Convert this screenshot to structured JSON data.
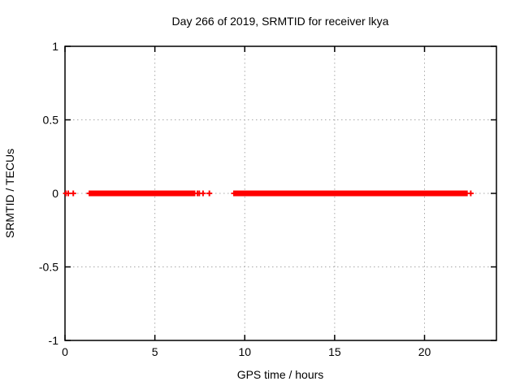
{
  "chart_data": {
    "type": "scatter",
    "title": "Day 266 of 2019, SRMTID for receiver lkya",
    "xlabel": "GPS time / hours",
    "ylabel": "SRMTID / TECUs",
    "xlim": [
      0,
      24
    ],
    "ylim": [
      -1,
      1
    ],
    "xticks": [
      0,
      5,
      10,
      15,
      20
    ],
    "xtick_labels": [
      "0",
      "5",
      "10",
      "15",
      "20"
    ],
    "yticks": [
      -1,
      -0.5,
      0,
      0.5,
      1
    ],
    "ytick_labels": [
      "-1",
      "-0.5",
      "0",
      "0.5",
      "1"
    ],
    "grid": "dashed",
    "legend": "none",
    "series": [
      {
        "name": "SRMTID",
        "color": "#ff0000",
        "marker": "plus",
        "y_value": 0,
        "dense_segments_hours": [
          [
            1.36,
            7.24
          ],
          [
            9.4,
            22.37
          ]
        ],
        "isolated_points_hours": [
          0.05,
          0.18,
          0.46,
          7.37,
          7.47,
          7.68,
          8.03,
          22.57
        ]
      }
    ]
  },
  "colors": {
    "background": "#ffffff",
    "axis": "#000000",
    "grid": "#a8a8a8",
    "data": "#ff0000"
  }
}
